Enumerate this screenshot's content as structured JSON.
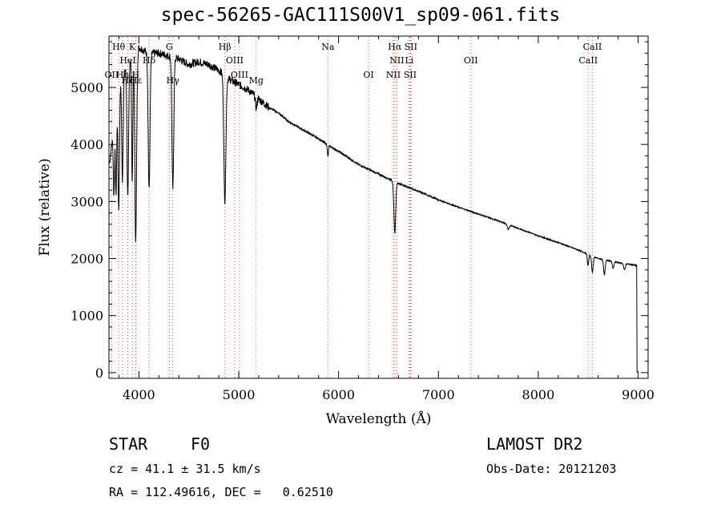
{
  "chart_data": {
    "type": "line",
    "title": "spec-56265-GAC111S00V1_sp09-061.fits",
    "xlabel": "Wavelength (Å)",
    "ylabel": "Flux (relative)",
    "xlim": [
      3700,
      9100
    ],
    "ylim": [
      -100,
      5900
    ],
    "x_ticks": [
      "4000",
      "5000",
      "6000",
      "7000",
      "8000",
      "9000"
    ],
    "y_ticks": [
      "0",
      "1000",
      "2000",
      "3000",
      "4000",
      "5000"
    ],
    "continuum": {
      "x": [
        3700,
        3800,
        3900,
        4000,
        4100,
        4200,
        4300,
        4400,
        4500,
        4600,
        4700,
        4800,
        4900,
        5000,
        5100,
        5200,
        5300,
        5400,
        5500,
        5600,
        5700,
        5800,
        5900,
        6000,
        6200,
        6400,
        6600,
        6800,
        7000,
        7200,
        7400,
        7600,
        7800,
        8000,
        8200,
        8400,
        8600,
        8800,
        8980
      ],
      "y": [
        3600,
        5000,
        5500,
        5700,
        5600,
        5600,
        5550,
        5500,
        5400,
        5450,
        5400,
        5300,
        5150,
        5050,
        4950,
        4800,
        4650,
        4550,
        4400,
        4300,
        4200,
        4100,
        3980,
        3880,
        3650,
        3480,
        3320,
        3180,
        3030,
        2900,
        2780,
        2660,
        2530,
        2400,
        2280,
        2150,
        2000,
        1930,
        1880
      ]
    },
    "absorption_lines": [
      {
        "center": 3750,
        "depth": 1200,
        "width": 6
      },
      {
        "center": 3771,
        "depth": 1500,
        "width": 6
      },
      {
        "center": 3798,
        "depth": 2100,
        "width": 7
      },
      {
        "center": 3835,
        "depth": 1800,
        "width": 7
      },
      {
        "center": 3889,
        "depth": 2400,
        "width": 8
      },
      {
        "center": 3933,
        "depth": 2200,
        "width": 6
      },
      {
        "center": 3968,
        "depth": 3300,
        "width": 9
      },
      {
        "center": 4102,
        "depth": 2400,
        "width": 9
      },
      {
        "center": 4340,
        "depth": 2300,
        "width": 9
      },
      {
        "center": 4861,
        "depth": 2200,
        "width": 10
      },
      {
        "center": 5175,
        "depth": 200,
        "width": 8
      },
      {
        "center": 5893,
        "depth": 200,
        "width": 5
      },
      {
        "center": 6563,
        "depth": 900,
        "width": 9
      },
      {
        "center": 7700,
        "depth": 80,
        "width": 10
      },
      {
        "center": 8498,
        "depth": 200,
        "width": 7
      },
      {
        "center": 8542,
        "depth": 280,
        "width": 8
      },
      {
        "center": 8662,
        "depth": 260,
        "width": 8
      },
      {
        "center": 8750,
        "depth": 120,
        "width": 8
      },
      {
        "center": 8863,
        "depth": 110,
        "width": 8
      }
    ],
    "line_markers": [
      {
        "label": "Hθ",
        "x": 3798,
        "row": 0
      },
      {
        "label": "K",
        "x": 3934,
        "row": 0
      },
      {
        "label": "G",
        "x": 4305,
        "row": 0
      },
      {
        "label": "Hβ",
        "x": 4861,
        "row": 0
      },
      {
        "label": "Na",
        "x": 5893,
        "row": 0
      },
      {
        "label": "Hα",
        "x": 6563,
        "row": 0
      },
      {
        "label": "SII",
        "x": 6724,
        "row": 0
      },
      {
        "label": "CaII",
        "x": 8542,
        "row": 0
      },
      {
        "label": "HeI",
        "x": 3889,
        "row": 1
      },
      {
        "label": "Hδ",
        "x": 4102,
        "row": 1
      },
      {
        "label": "OIII",
        "x": 4959,
        "row": 1
      },
      {
        "label": "NII",
        "x": 6584,
        "row": 1
      },
      {
        "label": "Li",
        "x": 6708,
        "row": 1
      },
      {
        "label": "OII",
        "x": 7325,
        "row": 1
      },
      {
        "label": "CaII",
        "x": 8500,
        "row": 1
      },
      {
        "label": "OII",
        "x": 3727,
        "row": 2
      },
      {
        "label": "Hη",
        "x": 3835,
        "row": 2
      },
      {
        "label": "H",
        "x": 3968,
        "row": 2
      },
      {
        "label": "OIII",
        "x": 5007,
        "row": 2
      },
      {
        "label": "OI",
        "x": 6300,
        "row": 2
      },
      {
        "label": "NII",
        "x": 6548,
        "row": 2
      },
      {
        "label": "SII",
        "x": 6717,
        "row": 2
      },
      {
        "label": "Hζ",
        "x": 3889,
        "row": 3
      },
      {
        "label": "Hε",
        "x": 3970,
        "row": 3
      },
      {
        "label": "Hγ",
        "x": 4340,
        "row": 3
      },
      {
        "label": "Mg",
        "x": 5175,
        "row": 3
      }
    ],
    "grid": false,
    "legend": "none"
  },
  "info": {
    "object_class": "STAR",
    "subclass": "F0",
    "survey": "LAMOST DR2",
    "cz": "cz = 41.1 ± 31.5 km/s",
    "obs_date": "Obs-Date: 20121203",
    "coords": "RA = 112.49616, DEC =   0.62510"
  },
  "colors": {
    "spectrum": "#000000",
    "marker_line": "#e0483a",
    "axis": "#000000"
  }
}
